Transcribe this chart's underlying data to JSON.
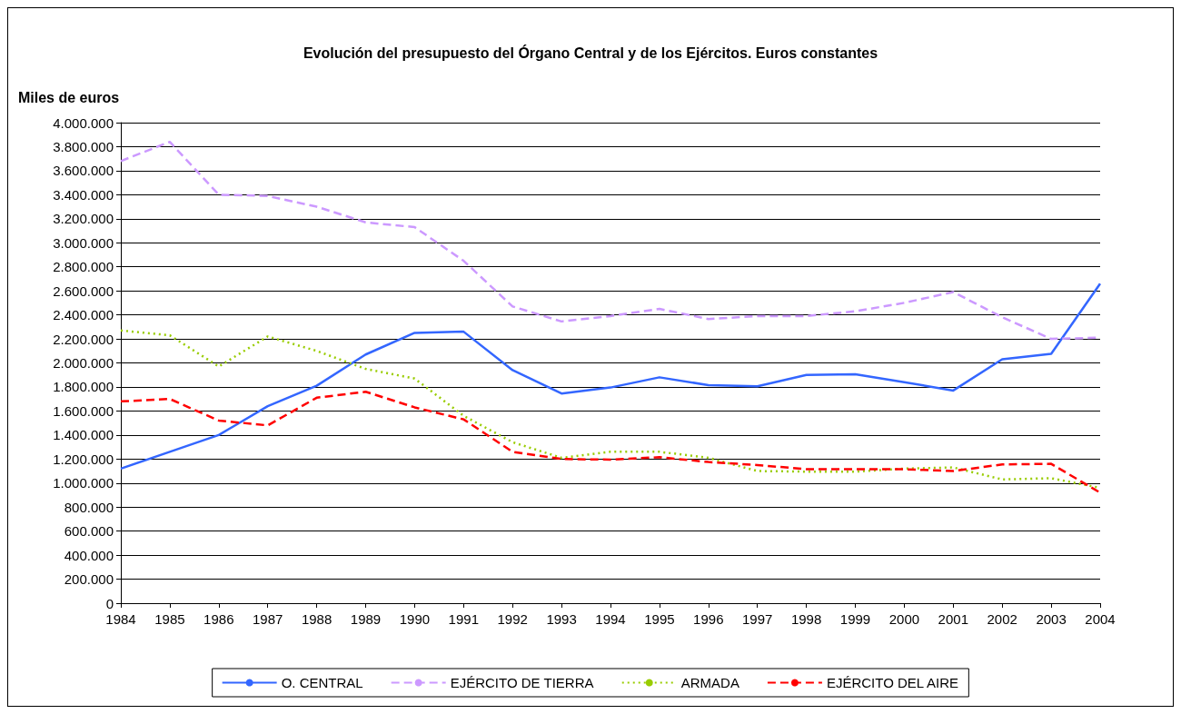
{
  "chart_data": {
    "type": "line",
    "title": "Evolución del presupuesto del Órgano Central y de los Ejércitos. Euros constantes",
    "ylabel": "Miles de euros",
    "categories": [
      "1984",
      "1985",
      "1986",
      "1987",
      "1988",
      "1989",
      "1990",
      "1991",
      "1992",
      "1993",
      "1994",
      "1995",
      "1996",
      "1997",
      "1998",
      "1999",
      "2000",
      "2001",
      "2002",
      "2003",
      "2004"
    ],
    "series": [
      {
        "name": "O. CENTRAL",
        "color": "#3366ff",
        "line_style": "solid",
        "values": [
          1120000,
          1260000,
          1400000,
          1640000,
          1810000,
          2070000,
          2250000,
          2260000,
          1940000,
          1745000,
          1795000,
          1880000,
          1815000,
          1805000,
          1900000,
          1905000,
          1840000,
          1770000,
          2030000,
          2075000,
          2660000
        ]
      },
      {
        "name": "EJÉRCITO DE TIERRA",
        "color": "#cc99ff",
        "line_style": "dashed",
        "values": [
          3680000,
          3840000,
          3400000,
          3390000,
          3300000,
          3170000,
          3130000,
          2850000,
          2470000,
          2345000,
          2390000,
          2450000,
          2365000,
          2390000,
          2390000,
          2430000,
          2500000,
          2590000,
          2380000,
          2200000,
          2210000
        ]
      },
      {
        "name": "ARMADA",
        "color": "#99cc00",
        "line_style": "dotted",
        "values": [
          2270000,
          2230000,
          1970000,
          2220000,
          2100000,
          1950000,
          1870000,
          1560000,
          1340000,
          1210000,
          1260000,
          1260000,
          1210000,
          1100000,
          1095000,
          1095000,
          1120000,
          1130000,
          1030000,
          1040000,
          960000
        ]
      },
      {
        "name": "EJÉRCITO DEL AIRE",
        "color": "#ff0000",
        "line_style": "dashed",
        "values": [
          1680000,
          1700000,
          1520000,
          1480000,
          1710000,
          1760000,
          1630000,
          1530000,
          1260000,
          1200000,
          1195000,
          1215000,
          1175000,
          1150000,
          1115000,
          1115000,
          1115000,
          1100000,
          1155000,
          1160000,
          920000
        ]
      }
    ],
    "ylim": [
      0,
      4000000
    ],
    "yticks": [
      0,
      {
        "value": 200000,
        "label": "200.000"
      },
      {
        "value": 400000,
        "label": "400.000"
      },
      {
        "value": 600000,
        "label": "600.000"
      },
      {
        "value": 800000,
        "label": "800.000"
      },
      {
        "value": 1000000,
        "label": "1.000.000"
      },
      {
        "value": 1200000,
        "label": "1.200.000"
      },
      {
        "value": 1400000,
        "label": "1.400.000"
      },
      {
        "value": 1600000,
        "label": "1.600.000"
      },
      {
        "value": 1800000,
        "label": "1.800.000"
      },
      {
        "value": 2000000,
        "label": "2.000.000"
      },
      {
        "value": 2200000,
        "label": "2.200.000"
      },
      {
        "value": 2400000,
        "label": "2.400.000"
      },
      {
        "value": 2600000,
        "label": "2.600.000"
      },
      {
        "value": 2800000,
        "label": "2.800.000"
      },
      {
        "value": 3000000,
        "label": "3.000.000"
      },
      {
        "value": 3200000,
        "label": "3.200.000"
      },
      {
        "value": 3400000,
        "label": "3.400.000"
      },
      {
        "value": 3600000,
        "label": "3.600.000"
      },
      {
        "value": 3800000,
        "label": "3.800.000"
      },
      {
        "value": 4000000,
        "label": "4.000.000"
      }
    ],
    "grid": "y",
    "legend": "bottom",
    "marker": "none"
  }
}
